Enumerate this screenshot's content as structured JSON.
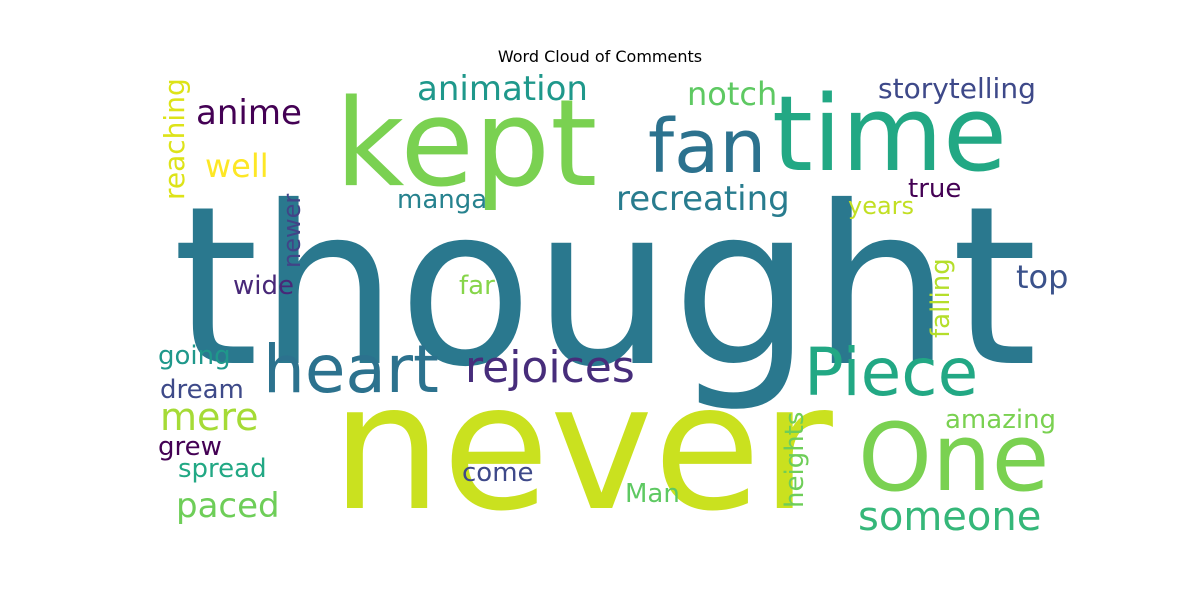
{
  "chart_data": {
    "type": "wordcloud",
    "title": "Word Cloud of Comments",
    "words": [
      {
        "text": "thought",
        "color": "#2a788e"
      },
      {
        "text": "never",
        "color": "#cae11f"
      },
      {
        "text": "kept",
        "color": "#7ad151"
      },
      {
        "text": "time",
        "color": "#22a884"
      },
      {
        "text": "fan",
        "color": "#2c728e"
      },
      {
        "text": "One",
        "color": "#7ad151"
      },
      {
        "text": "heart",
        "color": "#2c728e"
      },
      {
        "text": "Piece",
        "color": "#22a884"
      },
      {
        "text": "rejoices",
        "color": "#472d7b"
      },
      {
        "text": "someone",
        "color": "#35b779"
      },
      {
        "text": "animation",
        "color": "#1f988b"
      },
      {
        "text": "recreating",
        "color": "#287c8e"
      },
      {
        "text": "anime",
        "color": "#440154"
      },
      {
        "text": "notch",
        "color": "#5ec962"
      },
      {
        "text": "storytelling",
        "color": "#3e4989"
      },
      {
        "text": "mere",
        "color": "#a5db36"
      },
      {
        "text": "well",
        "color": "#fde725"
      },
      {
        "text": "top",
        "color": "#3b528b"
      },
      {
        "text": "paced",
        "color": "#6ece58"
      },
      {
        "text": "amazing",
        "color": "#7ad151"
      },
      {
        "text": "reaching",
        "color": "#dde318"
      },
      {
        "text": "falling",
        "color": "#b5de2b"
      },
      {
        "text": "heights",
        "color": "#6ece58"
      },
      {
        "text": "newer",
        "color": "#414487"
      },
      {
        "text": "manga",
        "color": "#26828e"
      },
      {
        "text": "years",
        "color": "#c2df23"
      },
      {
        "text": "true",
        "color": "#440154"
      },
      {
        "text": "wide",
        "color": "#482878"
      },
      {
        "text": "far",
        "color": "#86d549"
      },
      {
        "text": "going",
        "color": "#1f988b"
      },
      {
        "text": "dream",
        "color": "#3e4a89"
      },
      {
        "text": "grew",
        "color": "#440154"
      },
      {
        "text": "spread",
        "color": "#22a884"
      },
      {
        "text": "come",
        "color": "#3e4989"
      },
      {
        "text": "Man",
        "color": "#5ec962"
      }
    ]
  }
}
